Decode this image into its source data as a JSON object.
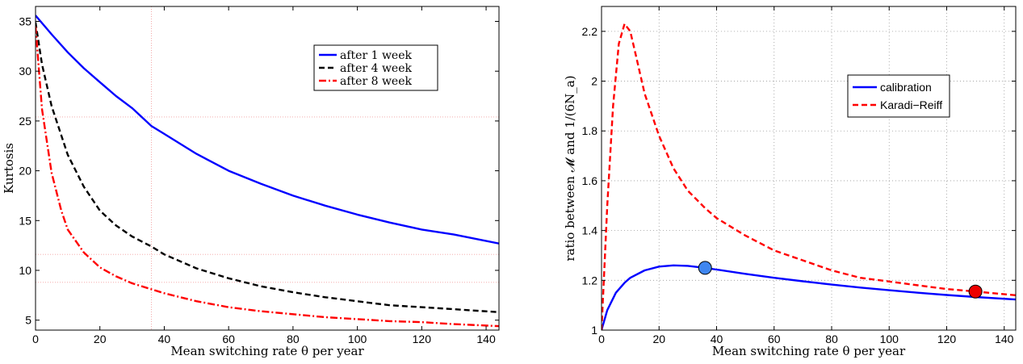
{
  "chart_data": [
    {
      "type": "line",
      "xlabel": "Mean switching rate θ per year",
      "ylabel": "Kurtosis",
      "xlim": [
        0,
        144
      ],
      "ylim": [
        4,
        36.5
      ],
      "xticks": [
        0,
        20,
        40,
        60,
        80,
        100,
        120,
        140
      ],
      "yticks": [
        5,
        10,
        15,
        20,
        25,
        30,
        35
      ],
      "grid": "dotted reference lines",
      "legend_position": "top-right",
      "reference_lines": {
        "x": [
          36
        ],
        "y": [
          25.4,
          11.6,
          8.8
        ]
      },
      "series": [
        {
          "name": "after 1 week",
          "color": "#0000ff",
          "dash": "solid",
          "x": [
            0,
            5,
            10,
            15,
            20,
            25,
            30,
            36,
            40,
            50,
            60,
            70,
            80,
            90,
            100,
            110,
            120,
            130,
            144
          ],
          "y": [
            35.6,
            33.7,
            31.9,
            30.3,
            28.9,
            27.5,
            26.3,
            24.5,
            23.7,
            21.7,
            20.0,
            18.7,
            17.5,
            16.5,
            15.6,
            14.8,
            14.1,
            13.6,
            12.7
          ]
        },
        {
          "name": "after 4 week",
          "color": "#000000",
          "dash": "dashed",
          "x": [
            0,
            2,
            5,
            10,
            15,
            20,
            25,
            30,
            36,
            40,
            50,
            60,
            70,
            80,
            90,
            100,
            110,
            120,
            130,
            144
          ],
          "y": [
            34.9,
            30.7,
            26.5,
            21.6,
            18.4,
            16.0,
            14.5,
            13.4,
            12.4,
            11.6,
            10.2,
            9.2,
            8.4,
            7.8,
            7.3,
            6.9,
            6.5,
            6.3,
            6.1,
            5.8
          ]
        },
        {
          "name": "after 8 week",
          "color": "#ff0000",
          "dash": "dashdot",
          "x": [
            0,
            2,
            5,
            8,
            10,
            15,
            20,
            25,
            30,
            36,
            40,
            50,
            60,
            70,
            80,
            90,
            100,
            110,
            120,
            130,
            144
          ],
          "y": [
            34.5,
            26.2,
            19.8,
            16.0,
            14.1,
            11.8,
            10.3,
            9.4,
            8.7,
            8.1,
            7.7,
            6.9,
            6.3,
            5.9,
            5.6,
            5.3,
            5.1,
            4.9,
            4.8,
            4.6,
            4.4
          ]
        }
      ]
    },
    {
      "type": "line",
      "xlabel": "Mean switching rate θ per year",
      "ylabel": "ratio between 𝓜 and 1/(6N_a)",
      "xlim": [
        0,
        144
      ],
      "ylim": [
        1,
        2.3
      ],
      "xticks": [
        0,
        20,
        40,
        60,
        80,
        100,
        120,
        140
      ],
      "yticks": [
        1,
        1.2,
        1.4,
        1.6,
        1.8,
        2,
        2.2
      ],
      "grid": "on",
      "legend_position": "upper-right",
      "series": [
        {
          "name": "calibration",
          "color": "#0000ff",
          "dash": "solid",
          "x": [
            0,
            2,
            5,
            8,
            10,
            15,
            20,
            25,
            30,
            36,
            40,
            50,
            60,
            70,
            80,
            90,
            100,
            110,
            120,
            130,
            144
          ],
          "y": [
            1.0,
            1.08,
            1.15,
            1.19,
            1.21,
            1.24,
            1.255,
            1.26,
            1.258,
            1.25,
            1.243,
            1.226,
            1.21,
            1.196,
            1.183,
            1.171,
            1.16,
            1.15,
            1.141,
            1.133,
            1.123
          ]
        },
        {
          "name": "Karadi−Reiff",
          "color": "#ff0000",
          "dash": "dashed",
          "x": [
            0,
            2,
            4,
            6,
            8,
            10,
            12,
            15,
            20,
            25,
            30,
            36,
            40,
            50,
            60,
            70,
            80,
            90,
            100,
            110,
            120,
            130,
            144
          ],
          "y": [
            1.0,
            1.5,
            1.9,
            2.15,
            2.23,
            2.2,
            2.1,
            1.95,
            1.78,
            1.65,
            1.56,
            1.49,
            1.45,
            1.38,
            1.32,
            1.28,
            1.24,
            1.21,
            1.195,
            1.18,
            1.165,
            1.155,
            1.14
          ]
        }
      ],
      "markers": [
        {
          "x": 36,
          "y": 1.25,
          "color": "#3f86f0"
        },
        {
          "x": 130,
          "y": 1.155,
          "color": "#ee0000"
        }
      ]
    }
  ]
}
